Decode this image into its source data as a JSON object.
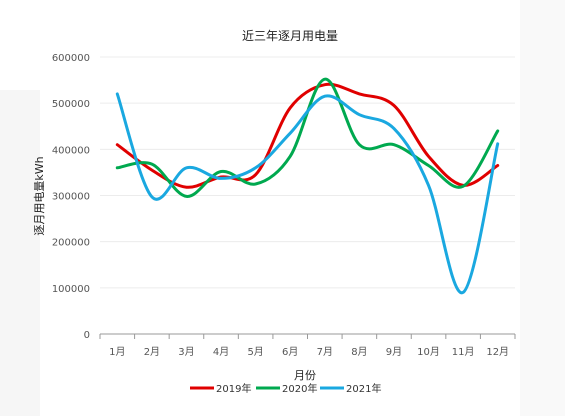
{
  "chart_data": {
    "type": "line",
    "title": "近三年逐月用电量",
    "xlabel": "月份",
    "ylabel": "逐月用电量kWh",
    "categories": [
      "1月",
      "2月",
      "3月",
      "4月",
      "5月",
      "6月",
      "7月",
      "8月",
      "9月",
      "10月",
      "11月",
      "12月"
    ],
    "ylim": [
      0,
      600000
    ],
    "yticks": [
      0,
      100000,
      200000,
      300000,
      400000,
      500000,
      600000
    ],
    "ytick_labels": [
      "0",
      "100000",
      "200000",
      "300000",
      "400000",
      "500000",
      "600000"
    ],
    "grid": true,
    "legend_position": "bottom",
    "series": [
      {
        "name": "2019年",
        "color": "#e00000",
        "values": [
          410000,
          355000,
          318000,
          340000,
          345000,
          490000,
          540000,
          520000,
          495000,
          385000,
          322000,
          365000
        ]
      },
      {
        "name": "2020年",
        "color": "#00a94f",
        "values": [
          360000,
          368000,
          298000,
          352000,
          325000,
          385000,
          552000,
          410000,
          410000,
          365000,
          320000,
          440000
        ]
      },
      {
        "name": "2021年",
        "color": "#1aa8e0",
        "values": [
          520000,
          297000,
          360000,
          337000,
          360000,
          435000,
          515000,
          475000,
          445000,
          322000,
          90000,
          412000
        ]
      }
    ]
  }
}
